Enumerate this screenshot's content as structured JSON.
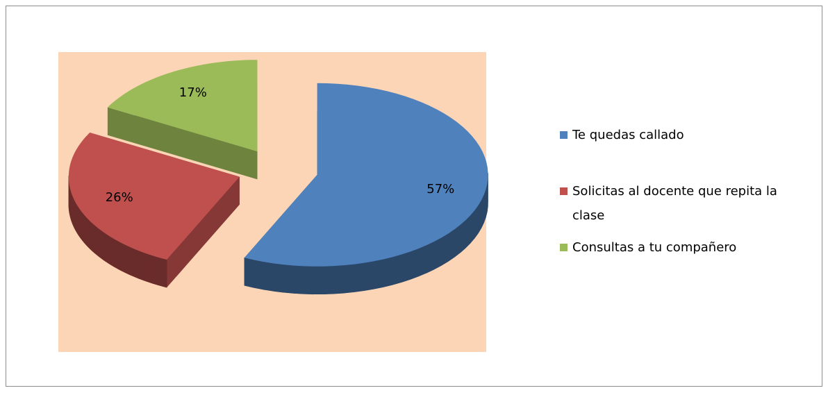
{
  "chart_data": {
    "type": "pie",
    "categories": [
      "Te quedas callado",
      "Solicitas al docente que repita la clase",
      "Consultas a tu compañero"
    ],
    "values": [
      57,
      26,
      17
    ],
    "value_labels": [
      "57%",
      "26%",
      "17%"
    ],
    "colors": [
      "#4f81bd",
      "#c0504d",
      "#9bbb59"
    ],
    "legend": "right"
  }
}
